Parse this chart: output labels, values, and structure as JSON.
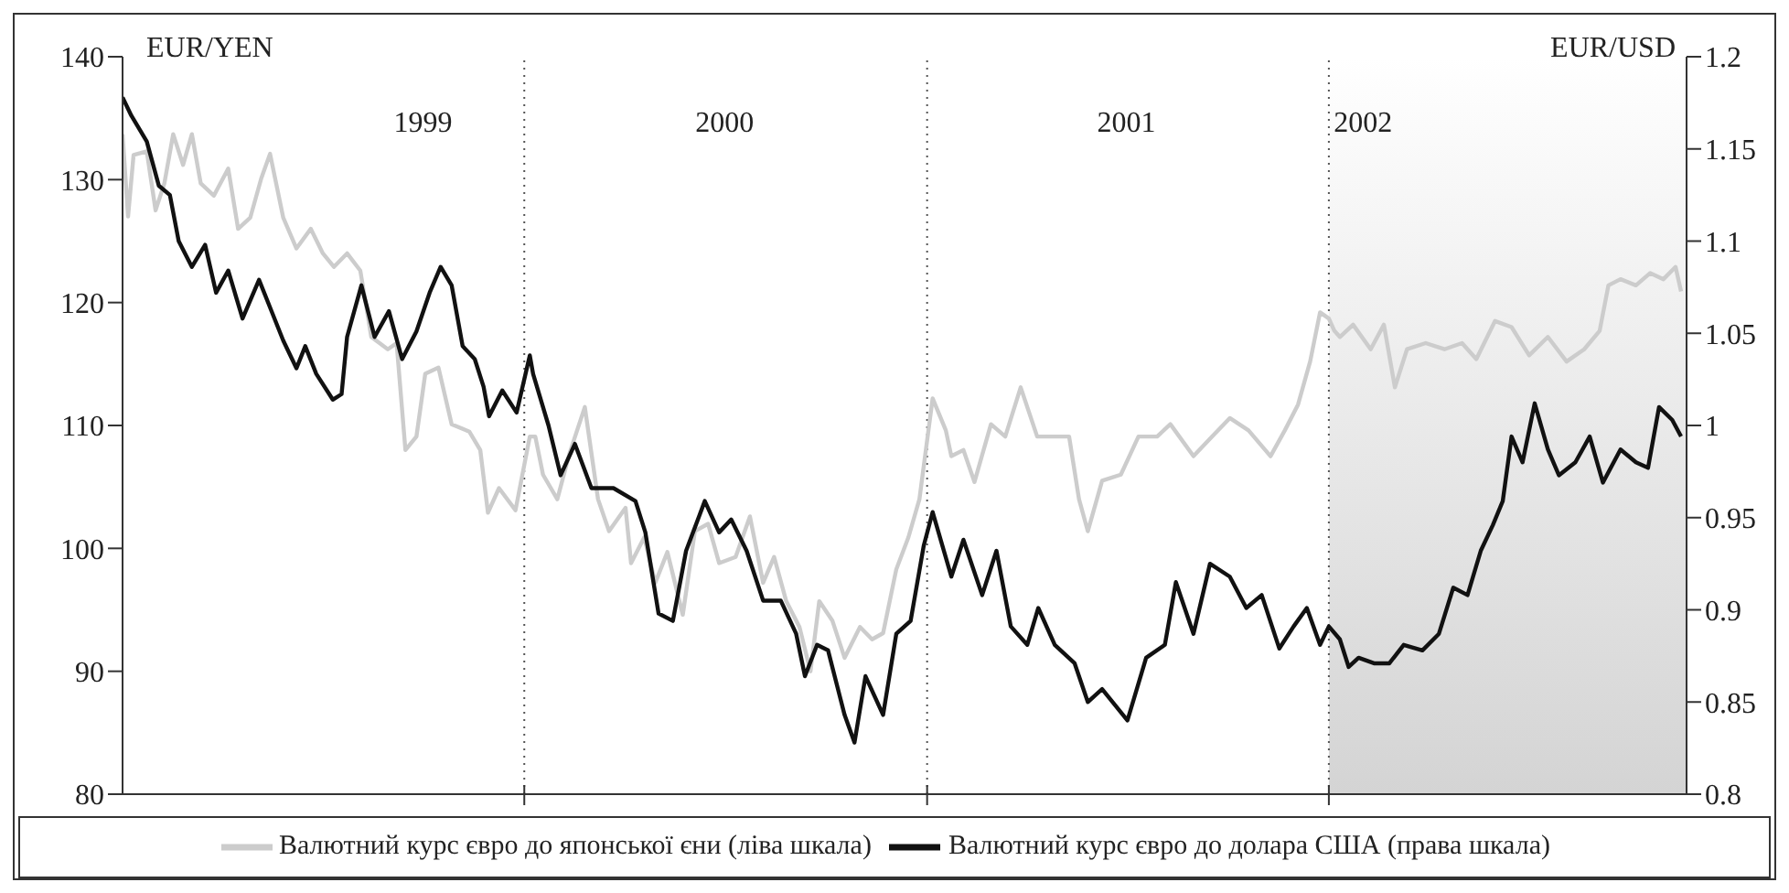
{
  "chart_data": {
    "type": "line",
    "ylabel": "EUR/YEN",
    "y2label": "EUR/USD",
    "xlim": [
      "1999-01-01",
      "2002-11-22"
    ],
    "xticks": [
      {
        "value": "1999-10-01",
        "label": "1999"
      },
      {
        "value": "2000-01-01",
        "label": null
      },
      {
        "value": "2000-07-01",
        "label": "2000"
      },
      {
        "value": "2001-01-01",
        "label": null
      },
      {
        "value": "2001-07-01",
        "label": "2001"
      },
      {
        "value": "2002-01-01",
        "label": null
      },
      {
        "value": "2002-02-01",
        "label": "2002"
      }
    ],
    "ylim": [
      80,
      140
    ],
    "yticks": [
      80,
      90,
      100,
      110,
      120,
      130,
      140
    ],
    "y2lim": [
      0.8,
      1.2
    ],
    "y2ticks": [
      0.8,
      0.85,
      0.9,
      0.95,
      1,
      1.05,
      1.1,
      1.15,
      1.2
    ],
    "grid": false,
    "legend": "bottom",
    "ref_lines": [
      {
        "axis": "x",
        "value": "2000-01-01",
        "color": "#555555",
        "line_style": "dotted"
      },
      {
        "axis": "x",
        "value": "2001-01-01",
        "color": "#555555",
        "line_style": "dotted"
      },
      {
        "axis": "x",
        "value": "2002-01-01",
        "color": "#555555",
        "line_style": "dotted"
      }
    ],
    "bands": [
      {
        "axis": "x",
        "from": "2002-01-01",
        "to": "2002-11-22",
        "color": "#d4d4d4"
      }
    ],
    "series": [
      {
        "name": "Валютний курс євро до японської єни (ліва шкала)",
        "color": "#cccccc",
        "axis": "y",
        "x": [
          "1999-01-01",
          "1999-01-06",
          "1999-01-11",
          "1999-01-23",
          "1999-01-31",
          "1999-02-08",
          "1999-02-16",
          "1999-02-25",
          "1999-03-05",
          "1999-03-13",
          "1999-03-25",
          "1999-04-07",
          "1999-04-16",
          "1999-04-27",
          "1999-05-07",
          "1999-05-15",
          "1999-05-27",
          "1999-06-08",
          "1999-06-21",
          "1999-07-02",
          "1999-07-12",
          "1999-07-24",
          "1999-08-05",
          "1999-08-15",
          "1999-08-30",
          "1999-09-07",
          "1999-09-15",
          "1999-09-25",
          "1999-10-03",
          "1999-10-15",
          "1999-10-27",
          "1999-11-12",
          "1999-11-22",
          "1999-11-29",
          "1999-12-09",
          "1999-12-24",
          "2000-01-06",
          "2000-01-11",
          "2000-01-18",
          "2000-01-31",
          "2000-02-11",
          "2000-02-25",
          "2000-03-08",
          "2000-03-18",
          "2000-04-02",
          "2000-04-07",
          "2000-04-19",
          "2000-04-29",
          "2000-05-10",
          "2000-05-24",
          "2000-06-04",
          "2000-06-16",
          "2000-06-26",
          "2000-07-11",
          "2000-07-24",
          "2000-08-05",
          "2000-08-15",
          "2000-08-26",
          "2000-09-07",
          "2000-09-17",
          "2000-09-25",
          "2000-10-07",
          "2000-10-18",
          "2000-11-01",
          "2000-11-12",
          "2000-11-22",
          "2000-12-04",
          "2000-12-15",
          "2000-12-25",
          "2001-01-06",
          "2001-01-18",
          "2001-01-23",
          "2001-02-03",
          "2001-02-13",
          "2001-02-28",
          "2001-03-13",
          "2001-03-27",
          "2001-04-11",
          "2001-04-27",
          "2001-05-10",
          "2001-05-19",
          "2001-05-27",
          "2001-06-09",
          "2001-06-26",
          "2001-07-12",
          "2001-07-29",
          "2001-08-10",
          "2001-08-31",
          "2001-09-17",
          "2001-10-03",
          "2001-10-20",
          "2001-11-09",
          "2001-11-22",
          "2001-12-04",
          "2001-12-15",
          "2001-12-24",
          "2002-01-01",
          "2002-01-06",
          "2002-01-11",
          "2002-01-23",
          "2002-02-08",
          "2002-02-20",
          "2002-03-02",
          "2002-03-13",
          "2002-03-30",
          "2002-04-16",
          "2002-05-02",
          "2002-05-15",
          "2002-06-01",
          "2002-06-16",
          "2002-07-02",
          "2002-07-19",
          "2002-08-05",
          "2002-08-21",
          "2002-09-04",
          "2002-09-12",
          "2002-09-23",
          "2002-10-07",
          "2002-10-20",
          "2002-11-01",
          "2002-11-12",
          "2002-11-17"
        ],
        "values": [
          133.7,
          127,
          132,
          132.3,
          127.5,
          129.7,
          133.7,
          131.2,
          133.7,
          129.7,
          128.7,
          130.9,
          126,
          126.9,
          130.1,
          132.1,
          126.9,
          124.4,
          126,
          124,
          122.9,
          124,
          122.6,
          117.2,
          116.2,
          116.7,
          108,
          109.1,
          114.2,
          114.7,
          110.1,
          109.5,
          108,
          102.9,
          104.9,
          103.1,
          109.1,
          109.1,
          106,
          104,
          107.7,
          111.5,
          104,
          101.4,
          103.3,
          98.8,
          100.9,
          97.2,
          99.7,
          94.6,
          101.4,
          102,
          98.8,
          99.3,
          102.6,
          97.2,
          99.3,
          95.7,
          93.6,
          90,
          95.7,
          94.1,
          91.1,
          93.6,
          92.6,
          93.1,
          98.3,
          100.9,
          104,
          112.2,
          109.6,
          107.5,
          108,
          105.4,
          110.1,
          109.1,
          113.1,
          109.1,
          109.1,
          109.1,
          104,
          101.4,
          105.5,
          106,
          109.1,
          109.1,
          110.1,
          107.5,
          109.1,
          110.6,
          109.6,
          107.5,
          109.6,
          111.7,
          115.2,
          119.2,
          118.7,
          117.7,
          117.2,
          118.2,
          116.2,
          118.2,
          113.1,
          116.2,
          116.7,
          116.2,
          116.7,
          115.4,
          118.5,
          118,
          115.7,
          117.2,
          115.2,
          116.2,
          117.7,
          121.4,
          121.9,
          121.4,
          122.4,
          121.9,
          122.9,
          120.9
        ]
      },
      {
        "name": "Валютний курс євро до долара США (права шкала)",
        "color": "#111111",
        "axis": "y2",
        "x": [
          "1999-01-01",
          "1999-01-09",
          "1999-01-23",
          "1999-02-03",
          "1999-02-13",
          "1999-02-21",
          "1999-03-05",
          "1999-03-17",
          "1999-03-27",
          "1999-04-07",
          "1999-04-20",
          "1999-05-05",
          "1999-05-15",
          "1999-05-27",
          "1999-06-08",
          "1999-06-16",
          "1999-06-26",
          "1999-07-11",
          "1999-07-19",
          "1999-07-24",
          "1999-08-06",
          "1999-08-18",
          "1999-08-31",
          "1999-09-12",
          "1999-09-25",
          "1999-10-07",
          "1999-10-17",
          "1999-10-27",
          "1999-11-06",
          "1999-11-17",
          "1999-11-25",
          "1999-11-30",
          "1999-12-12",
          "1999-12-25",
          "2000-01-06",
          "2000-01-09",
          "2000-01-23",
          "2000-02-03",
          "2000-02-16",
          "2000-03-02",
          "2000-03-22",
          "2000-04-11",
          "2000-04-20",
          "2000-05-02",
          "2000-05-15",
          "2000-05-27",
          "2000-06-13",
          "2000-06-26",
          "2000-07-07",
          "2000-07-21",
          "2000-08-05",
          "2000-08-21",
          "2000-09-04",
          "2000-09-12",
          "2000-09-23",
          "2000-10-03",
          "2000-10-18",
          "2000-10-27",
          "2000-11-06",
          "2000-11-22",
          "2000-12-04",
          "2000-12-17",
          "2000-12-29",
          "2001-01-06",
          "2001-01-23",
          "2001-02-03",
          "2001-02-20",
          "2001-03-05",
          "2001-03-18",
          "2001-04-02",
          "2001-04-12",
          "2001-04-27",
          "2001-05-15",
          "2001-05-27",
          "2001-06-09",
          "2001-07-02",
          "2001-07-19",
          "2001-08-05",
          "2001-08-15",
          "2001-08-31",
          "2001-09-15",
          "2001-10-03",
          "2001-10-18",
          "2001-11-01",
          "2001-11-17",
          "2001-11-30",
          "2001-12-12",
          "2001-12-24",
          "2002-01-01",
          "2002-01-11",
          "2002-01-19",
          "2002-01-28",
          "2002-02-11",
          "2002-02-25",
          "2002-03-10",
          "2002-03-27",
          "2002-04-11",
          "2002-04-24",
          "2002-05-07",
          "2002-05-19",
          "2002-05-30",
          "2002-06-08",
          "2002-06-16",
          "2002-06-26",
          "2002-07-07",
          "2002-07-19",
          "2002-07-29",
          "2002-08-13",
          "2002-08-26",
          "2002-09-07",
          "2002-09-23",
          "2002-10-07",
          "2002-10-18",
          "2002-10-28",
          "2002-11-09",
          "2002-11-17"
        ],
        "values": [
          1.178,
          1.168,
          1.154,
          1.13,
          1.125,
          1.1,
          1.086,
          1.098,
          1.072,
          1.084,
          1.058,
          1.079,
          1.064,
          1.046,
          1.031,
          1.043,
          1.028,
          1.014,
          1.017,
          1.048,
          1.076,
          1.048,
          1.062,
          1.036,
          1.051,
          1.072,
          1.086,
          1.076,
          1.043,
          1.036,
          1.021,
          1.005,
          1.019,
          1.007,
          1.038,
          1.028,
          1,
          0.973,
          0.99,
          0.966,
          0.966,
          0.959,
          0.942,
          0.898,
          0.894,
          0.932,
          0.959,
          0.942,
          0.949,
          0.932,
          0.905,
          0.905,
          0.887,
          0.864,
          0.881,
          0.878,
          0.843,
          0.828,
          0.864,
          0.843,
          0.887,
          0.894,
          0.935,
          0.953,
          0.918,
          0.938,
          0.908,
          0.932,
          0.891,
          0.881,
          0.901,
          0.881,
          0.871,
          0.85,
          0.857,
          0.84,
          0.874,
          0.881,
          0.915,
          0.887,
          0.925,
          0.918,
          0.901,
          0.908,
          0.879,
          0.891,
          0.901,
          0.881,
          0.891,
          0.884,
          0.869,
          0.874,
          0.871,
          0.871,
          0.881,
          0.878,
          0.887,
          0.912,
          0.908,
          0.932,
          0.946,
          0.959,
          0.994,
          0.98,
          1.012,
          0.987,
          0.973,
          0.98,
          0.994,
          0.969,
          0.987,
          0.98,
          0.977,
          1.01,
          1.003,
          0.994
        ]
      }
    ]
  }
}
